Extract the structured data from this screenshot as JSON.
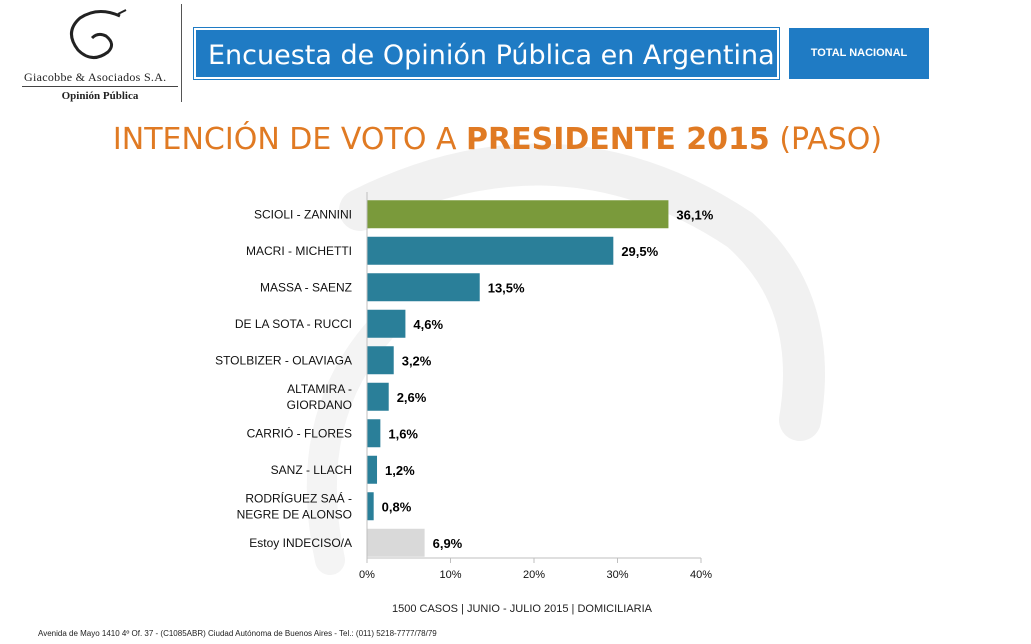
{
  "logo": {
    "name": "Giacobbe & Asociados S.A.",
    "subtitle": "Opinión Pública"
  },
  "header": {
    "title": "Encuesta de Opinión Pública en Argentina",
    "badge": "TOTAL NACIONAL"
  },
  "heading": {
    "part1": "INTENCIÓN DE VOTO A ",
    "part2": "PRESIDENTE 2015",
    "part3": " (PASO)"
  },
  "chart_data": {
    "type": "bar",
    "orientation": "horizontal",
    "title": "INTENCIÓN DE VOTO A PRESIDENTE 2015 (PASO)",
    "categories": [
      [
        "SCIOLI - ZANNINI"
      ],
      [
        "MACRI - MICHETTI"
      ],
      [
        "MASSA - SAENZ"
      ],
      [
        "DE LA SOTA - RUCCI"
      ],
      [
        "STOLBIZER - OLAVIAGA"
      ],
      [
        "ALTAMIRA -",
        "GIORDANO"
      ],
      [
        "CARRIÓ - FLORES"
      ],
      [
        "SANZ - LLACH"
      ],
      [
        "RODRÍGUEZ SAÁ -",
        "NEGRE DE ALONSO"
      ],
      [
        "Estoy INDECISO/A"
      ]
    ],
    "values": [
      36.1,
      29.5,
      13.5,
      4.6,
      3.2,
      2.6,
      1.6,
      1.2,
      0.8,
      6.9
    ],
    "value_labels": [
      "36,1%",
      "29,5%",
      "13,5%",
      "4,6%",
      "3,2%",
      "2,6%",
      "1,6%",
      "1,2%",
      "0,8%",
      "6,9%"
    ],
    "bar_colors": [
      "#7a9a3b",
      "#2a7f99",
      "#2a7f99",
      "#2a7f99",
      "#2a7f99",
      "#2a7f99",
      "#2a7f99",
      "#2a7f99",
      "#2a7f99",
      "#d9d9d9"
    ],
    "xlim": [
      0,
      40
    ],
    "xticks": [
      0,
      10,
      20,
      30,
      40
    ],
    "xtick_labels": [
      "0%",
      "10%",
      "20%",
      "30%",
      "40%"
    ],
    "grid": false,
    "legend": "none"
  },
  "footnote": "1500 CASOS | JUNIO - JULIO 2015 | DOMICILIARIA",
  "address": "Avenida de Mayo 1410 4º Of. 37 - (C1085ABR) Ciudad Autónoma de Buenos Aires - Tel.: (011) 5218-7777/78/79"
}
